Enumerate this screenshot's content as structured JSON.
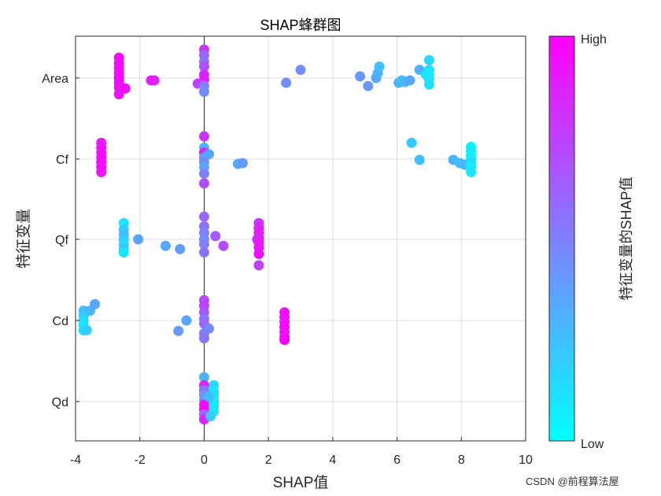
{
  "chart_data": {
    "type": "scatter",
    "title": "SHAP蜂群图",
    "xlabel": "SHAP值",
    "ylabel": "特征变量",
    "xlim": [
      -4,
      10
    ],
    "xticks": [
      -4,
      -2,
      0,
      2,
      4,
      6,
      8,
      10
    ],
    "grid": true,
    "categories": [
      "Area",
      "Cf",
      "Qf",
      "Cd",
      "Qd"
    ],
    "colorbar": {
      "title": "特征变量的SHAP值",
      "high_label": "High",
      "low_label": "Low",
      "low_color": "#00ffff",
      "high_color": "#ff00ff"
    },
    "series": [
      {
        "name": "Area",
        "points": [
          {
            "x": -2.65,
            "dy": 0.25,
            "v": 0.97
          },
          {
            "x": -2.65,
            "dy": 0.18,
            "v": 0.96
          },
          {
            "x": -2.65,
            "dy": 0.12,
            "v": 0.95
          },
          {
            "x": -2.65,
            "dy": 0.06,
            "v": 0.98
          },
          {
            "x": -2.65,
            "dy": 0.0,
            "v": 0.97
          },
          {
            "x": -2.65,
            "dy": -0.06,
            "v": 0.96
          },
          {
            "x": -2.65,
            "dy": -0.12,
            "v": 0.94
          },
          {
            "x": -2.65,
            "dy": -0.2,
            "v": 0.93
          },
          {
            "x": -2.45,
            "dy": -0.13,
            "v": 0.92
          },
          {
            "x": -1.65,
            "dy": -0.03,
            "v": 0.9
          },
          {
            "x": -1.55,
            "dy": -0.03,
            "v": 0.88
          },
          {
            "x": 0.0,
            "dy": 0.35,
            "v": 0.8
          },
          {
            "x": 0.0,
            "dy": 0.28,
            "v": 0.6
          },
          {
            "x": 0.0,
            "dy": 0.2,
            "v": 0.55
          },
          {
            "x": 0.0,
            "dy": 0.14,
            "v": 0.7
          },
          {
            "x": 0.0,
            "dy": 0.04,
            "v": 0.85
          },
          {
            "x": 0.0,
            "dy": -0.02,
            "v": 0.9
          },
          {
            "x": -0.2,
            "dy": -0.07,
            "v": 0.75
          },
          {
            "x": 0.0,
            "dy": -0.1,
            "v": 0.5
          },
          {
            "x": 0.0,
            "dy": -0.17,
            "v": 0.45
          },
          {
            "x": 2.55,
            "dy": -0.06,
            "v": 0.45
          },
          {
            "x": 3.0,
            "dy": 0.1,
            "v": 0.45
          },
          {
            "x": 4.85,
            "dy": 0.02,
            "v": 0.4
          },
          {
            "x": 5.1,
            "dy": -0.1,
            "v": 0.4
          },
          {
            "x": 5.35,
            "dy": 0.0,
            "v": 0.35
          },
          {
            "x": 5.4,
            "dy": 0.06,
            "v": 0.3
          },
          {
            "x": 5.45,
            "dy": 0.14,
            "v": 0.25
          },
          {
            "x": 6.05,
            "dy": -0.06,
            "v": 0.3
          },
          {
            "x": 6.15,
            "dy": -0.03,
            "v": 0.25
          },
          {
            "x": 6.25,
            "dy": -0.05,
            "v": 0.3
          },
          {
            "x": 6.4,
            "dy": -0.03,
            "v": 0.35
          },
          {
            "x": 6.7,
            "dy": 0.1,
            "v": 0.3
          },
          {
            "x": 7.0,
            "dy": 0.22,
            "v": 0.15
          },
          {
            "x": 7.0,
            "dy": 0.1,
            "v": 0.1
          },
          {
            "x": 7.0,
            "dy": 0.04,
            "v": 0.08
          },
          {
            "x": 7.0,
            "dy": -0.02,
            "v": 0.1
          },
          {
            "x": 7.0,
            "dy": -0.08,
            "v": 0.12
          },
          {
            "x": 6.9,
            "dy": 0.04,
            "v": 0.1
          }
        ]
      },
      {
        "name": "Cf",
        "points": [
          {
            "x": -3.2,
            "dy": 0.2,
            "v": 0.9
          },
          {
            "x": -3.2,
            "dy": 0.14,
            "v": 0.92
          },
          {
            "x": -3.2,
            "dy": 0.08,
            "v": 0.93
          },
          {
            "x": -3.2,
            "dy": 0.02,
            "v": 0.95
          },
          {
            "x": -3.2,
            "dy": -0.04,
            "v": 0.96
          },
          {
            "x": -3.2,
            "dy": -0.1,
            "v": 0.94
          },
          {
            "x": -3.2,
            "dy": -0.16,
            "v": 0.93
          },
          {
            "x": 0.0,
            "dy": 0.28,
            "v": 0.8
          },
          {
            "x": 0.0,
            "dy": 0.14,
            "v": 0.3
          },
          {
            "x": 0.0,
            "dy": 0.08,
            "v": 0.85
          },
          {
            "x": 0.0,
            "dy": 0.02,
            "v": 0.4
          },
          {
            "x": 0.15,
            "dy": 0.06,
            "v": 0.35
          },
          {
            "x": 0.0,
            "dy": -0.04,
            "v": 0.45
          },
          {
            "x": 0.0,
            "dy": -0.1,
            "v": 0.35
          },
          {
            "x": 0.0,
            "dy": -0.18,
            "v": 0.5
          },
          {
            "x": 0.0,
            "dy": -0.3,
            "v": 0.7
          },
          {
            "x": 1.05,
            "dy": -0.06,
            "v": 0.35
          },
          {
            "x": 1.2,
            "dy": -0.05,
            "v": 0.4
          },
          {
            "x": 6.45,
            "dy": 0.2,
            "v": 0.2
          },
          {
            "x": 6.7,
            "dy": -0.01,
            "v": 0.25
          },
          {
            "x": 7.75,
            "dy": -0.01,
            "v": 0.3
          },
          {
            "x": 7.95,
            "dy": -0.05,
            "v": 0.25
          },
          {
            "x": 8.1,
            "dy": -0.07,
            "v": 0.3
          },
          {
            "x": 8.3,
            "dy": 0.15,
            "v": 0.05
          },
          {
            "x": 8.3,
            "dy": 0.1,
            "v": 0.08
          },
          {
            "x": 8.3,
            "dy": 0.05,
            "v": 0.05
          },
          {
            "x": 8.3,
            "dy": 0.0,
            "v": 0.1
          },
          {
            "x": 8.3,
            "dy": -0.05,
            "v": 0.12
          },
          {
            "x": 8.3,
            "dy": -0.1,
            "v": 0.08
          },
          {
            "x": 8.3,
            "dy": -0.16,
            "v": 0.1
          }
        ]
      },
      {
        "name": "Qf",
        "points": [
          {
            "x": -2.5,
            "dy": 0.2,
            "v": 0.1
          },
          {
            "x": -2.5,
            "dy": 0.12,
            "v": 0.2
          },
          {
            "x": -2.5,
            "dy": 0.06,
            "v": 0.25
          },
          {
            "x": -2.5,
            "dy": 0.0,
            "v": 0.2
          },
          {
            "x": -2.5,
            "dy": -0.06,
            "v": 0.15
          },
          {
            "x": -2.5,
            "dy": -0.12,
            "v": 0.2
          },
          {
            "x": -2.5,
            "dy": -0.16,
            "v": 0.1
          },
          {
            "x": -2.05,
            "dy": 0.0,
            "v": 0.35
          },
          {
            "x": -1.2,
            "dy": -0.08,
            "v": 0.35
          },
          {
            "x": -0.75,
            "dy": -0.12,
            "v": 0.4
          },
          {
            "x": 0.0,
            "dy": 0.28,
            "v": 0.6
          },
          {
            "x": 0.0,
            "dy": 0.16,
            "v": 0.55
          },
          {
            "x": 0.0,
            "dy": 0.08,
            "v": 0.5
          },
          {
            "x": 0.0,
            "dy": 0.0,
            "v": 0.45
          },
          {
            "x": 0.0,
            "dy": -0.06,
            "v": 0.5
          },
          {
            "x": 0.0,
            "dy": -0.16,
            "v": 0.55
          },
          {
            "x": 0.35,
            "dy": 0.04,
            "v": 0.65
          },
          {
            "x": 0.6,
            "dy": -0.08,
            "v": 0.7
          },
          {
            "x": 1.65,
            "dy": 0.0,
            "v": 0.75
          },
          {
            "x": 1.7,
            "dy": 0.2,
            "v": 0.8
          },
          {
            "x": 1.7,
            "dy": 0.14,
            "v": 0.85
          },
          {
            "x": 1.7,
            "dy": 0.08,
            "v": 0.9
          },
          {
            "x": 1.7,
            "dy": 0.02,
            "v": 0.88
          },
          {
            "x": 1.7,
            "dy": -0.04,
            "v": 0.9
          },
          {
            "x": 1.7,
            "dy": -0.1,
            "v": 0.92
          },
          {
            "x": 1.7,
            "dy": -0.18,
            "v": 0.95
          },
          {
            "x": 1.7,
            "dy": -0.32,
            "v": 0.75
          }
        ]
      },
      {
        "name": "Cd",
        "points": [
          {
            "x": -3.75,
            "dy": 0.12,
            "v": 0.25
          },
          {
            "x": -3.75,
            "dy": 0.06,
            "v": 0.2
          },
          {
            "x": -3.75,
            "dy": 0.0,
            "v": 0.15
          },
          {
            "x": -3.75,
            "dy": -0.06,
            "v": 0.1
          },
          {
            "x": -3.75,
            "dy": -0.12,
            "v": 0.12
          },
          {
            "x": -3.65,
            "dy": -0.12,
            "v": 0.2
          },
          {
            "x": -3.55,
            "dy": 0.12,
            "v": 0.3
          },
          {
            "x": -3.4,
            "dy": 0.2,
            "v": 0.35
          },
          {
            "x": -0.55,
            "dy": 0.0,
            "v": 0.35
          },
          {
            "x": -0.8,
            "dy": -0.13,
            "v": 0.4
          },
          {
            "x": 0.0,
            "dy": 0.25,
            "v": 0.7
          },
          {
            "x": 0.0,
            "dy": 0.18,
            "v": 0.75
          },
          {
            "x": 0.0,
            "dy": 0.1,
            "v": 0.65
          },
          {
            "x": 0.0,
            "dy": 0.02,
            "v": 0.55
          },
          {
            "x": 0.0,
            "dy": -0.04,
            "v": 0.6
          },
          {
            "x": 0.15,
            "dy": -0.1,
            "v": 0.45
          },
          {
            "x": 0.0,
            "dy": -0.16,
            "v": 0.5
          },
          {
            "x": 0.0,
            "dy": -0.22,
            "v": 0.55
          },
          {
            "x": 2.5,
            "dy": 0.1,
            "v": 0.95
          },
          {
            "x": 2.5,
            "dy": 0.04,
            "v": 0.96
          },
          {
            "x": 2.5,
            "dy": -0.02,
            "v": 0.93
          },
          {
            "x": 2.5,
            "dy": -0.08,
            "v": 0.97
          },
          {
            "x": 2.5,
            "dy": -0.14,
            "v": 0.95
          },
          {
            "x": 2.5,
            "dy": -0.2,
            "v": 0.94
          },
          {
            "x": 2.5,
            "dy": -0.24,
            "v": 0.98
          }
        ]
      },
      {
        "name": "Qd",
        "points": [
          {
            "x": 0.0,
            "dy": 0.3,
            "v": 0.3
          },
          {
            "x": 0.0,
            "dy": 0.2,
            "v": 0.85
          },
          {
            "x": 0.0,
            "dy": 0.14,
            "v": 0.55
          },
          {
            "x": 0.0,
            "dy": 0.08,
            "v": 0.45
          },
          {
            "x": 0.0,
            "dy": 0.02,
            "v": 0.4
          },
          {
            "x": 0.0,
            "dy": -0.04,
            "v": 0.95
          },
          {
            "x": 0.0,
            "dy": -0.1,
            "v": 0.98
          },
          {
            "x": 0.0,
            "dy": -0.16,
            "v": 0.6
          },
          {
            "x": 0.0,
            "dy": -0.22,
            "v": 0.85
          },
          {
            "x": 0.3,
            "dy": 0.2,
            "v": 0.15
          },
          {
            "x": 0.3,
            "dy": 0.12,
            "v": 0.1
          },
          {
            "x": 0.3,
            "dy": 0.06,
            "v": 0.12
          },
          {
            "x": 0.3,
            "dy": 0.0,
            "v": 0.1
          },
          {
            "x": 0.3,
            "dy": -0.06,
            "v": 0.08
          },
          {
            "x": 0.3,
            "dy": -0.12,
            "v": 0.1
          },
          {
            "x": 0.2,
            "dy": -0.18,
            "v": 0.2
          },
          {
            "x": 0.15,
            "dy": 0.06,
            "v": 0.25
          }
        ]
      }
    ]
  },
  "watermark": "CSDN @前程算法屋"
}
